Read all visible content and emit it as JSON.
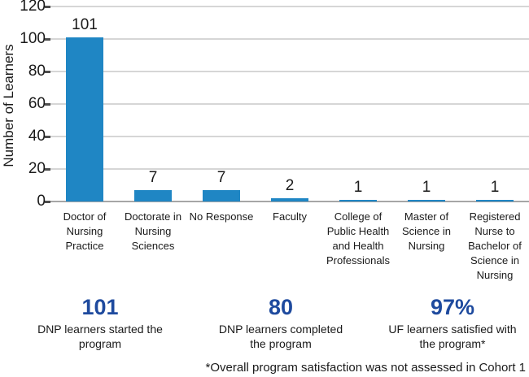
{
  "colors": {
    "bar": "#1f86c4",
    "stat_number": "#1e4a9e",
    "gridline": "#d6d6d6",
    "axis_line": "#a6a6a6",
    "text": "#1a1a1a"
  },
  "chart_data": {
    "type": "bar",
    "title": "",
    "xlabel": "",
    "ylabel": "Number of Learners",
    "ylim": [
      0,
      120
    ],
    "yticks": [
      0,
      20,
      40,
      60,
      80,
      100,
      120
    ],
    "grid": true,
    "legend": false,
    "bar_color": "#1f86c4",
    "categories": [
      "Doctor of Nursing Practice",
      "Doctorate in Nursing Sciences",
      "No Response",
      "Faculty",
      "College of Public Health and Health Professionals",
      "Master of Science in Nursing",
      "Registered Nurse to Bachelor of Science in Nursing"
    ],
    "values": [
      101,
      7,
      7,
      2,
      1,
      1,
      1
    ],
    "data_labels": [
      "101",
      "7",
      "7",
      "2",
      "1",
      "1",
      "1"
    ]
  },
  "stats": [
    {
      "value": "101",
      "label": "DNP learners started the program"
    },
    {
      "value": "80",
      "label": "DNP learners completed the program"
    },
    {
      "value": "97%",
      "label": "UF learners satisfied with the program*"
    }
  ],
  "footnote": "*Overall program satisfaction was not assessed in Cohort 1"
}
